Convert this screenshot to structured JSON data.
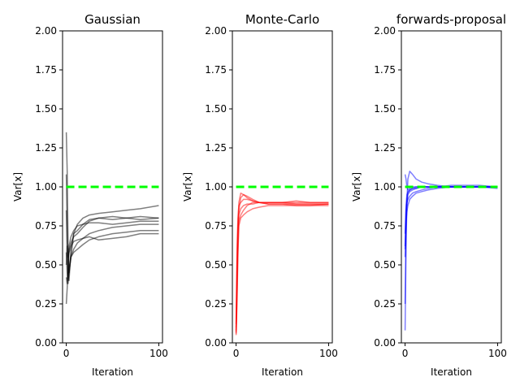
{
  "chart_data": [
    {
      "type": "line",
      "title": "Gaussian",
      "xlabel": "Iteration",
      "ylabel": "Var[x]",
      "xlim": [
        -4,
        104
      ],
      "ylim": [
        0,
        2
      ],
      "xticks": [
        "0",
        "100"
      ],
      "yticks": [
        "0.00",
        "0.25",
        "0.50",
        "0.75",
        "1.00",
        "1.25",
        "1.50",
        "1.75",
        "2.00"
      ],
      "reference_line": {
        "y": 1.0,
        "color": "#00ff00",
        "style": "dashed"
      },
      "series_color": "#000000",
      "series_opacity": 0.5,
      "series": [
        {
          "x": [
            0,
            1,
            2,
            3,
            5,
            8,
            12,
            18,
            25,
            35,
            50,
            65,
            80,
            100
          ],
          "values": [
            1.35,
            1.1,
            0.6,
            0.45,
            0.55,
            0.7,
            0.72,
            0.76,
            0.79,
            0.8,
            0.79,
            0.8,
            0.81,
            0.8
          ]
        },
        {
          "x": [
            0,
            1,
            2,
            3,
            5,
            8,
            12,
            18,
            25,
            35,
            50,
            65,
            80,
            100
          ],
          "values": [
            1.08,
            0.75,
            0.52,
            0.4,
            0.6,
            0.7,
            0.76,
            0.8,
            0.82,
            0.83,
            0.84,
            0.85,
            0.86,
            0.88
          ]
        },
        {
          "x": [
            0,
            1,
            2,
            3,
            5,
            8,
            12,
            18,
            25,
            35,
            50,
            65,
            80,
            100
          ],
          "values": [
            0.25,
            0.35,
            0.5,
            0.62,
            0.68,
            0.72,
            0.75,
            0.76,
            0.77,
            0.77,
            0.76,
            0.77,
            0.78,
            0.78
          ]
        },
        {
          "x": [
            0,
            1,
            2,
            3,
            5,
            8,
            12,
            18,
            25,
            35,
            50,
            65,
            80,
            100
          ],
          "values": [
            0.85,
            0.55,
            0.4,
            0.45,
            0.55,
            0.6,
            0.64,
            0.67,
            0.7,
            0.72,
            0.74,
            0.75,
            0.76,
            0.76
          ]
        },
        {
          "x": [
            0,
            1,
            2,
            3,
            5,
            8,
            12,
            18,
            25,
            35,
            50,
            65,
            80,
            100
          ],
          "values": [
            0.58,
            0.45,
            0.38,
            0.48,
            0.55,
            0.58,
            0.6,
            0.63,
            0.66,
            0.68,
            0.7,
            0.71,
            0.72,
            0.72
          ]
        },
        {
          "x": [
            0,
            1,
            2,
            3,
            5,
            8,
            12,
            18,
            25,
            35,
            50,
            65,
            80,
            100
          ],
          "values": [
            0.5,
            0.62,
            0.55,
            0.58,
            0.62,
            0.65,
            0.66,
            0.67,
            0.68,
            0.66,
            0.67,
            0.68,
            0.7,
            0.7
          ]
        },
        {
          "x": [
            0,
            1,
            2,
            3,
            5,
            8,
            12,
            18,
            25,
            35,
            50,
            65,
            80,
            100
          ],
          "values": [
            0.42,
            0.38,
            0.45,
            0.6,
            0.64,
            0.68,
            0.7,
            0.74,
            0.78,
            0.8,
            0.81,
            0.8,
            0.79,
            0.8
          ]
        }
      ]
    },
    {
      "type": "line",
      "title": "Monte-Carlo",
      "xlabel": "Iteration",
      "ylabel": "Var[x]",
      "xlim": [
        -4,
        104
      ],
      "ylim": [
        0,
        2
      ],
      "xticks": [
        "0",
        "100"
      ],
      "yticks": [
        "0.00",
        "0.25",
        "0.50",
        "0.75",
        "1.00",
        "1.25",
        "1.50",
        "1.75",
        "2.00"
      ],
      "reference_line": {
        "y": 1.0,
        "color": "#00ff00",
        "style": "dashed"
      },
      "series_color": "#ff0000",
      "series_opacity": 0.5,
      "series": [
        {
          "x": [
            0,
            1,
            2,
            3,
            5,
            8,
            12,
            18,
            25,
            35,
            50,
            65,
            80,
            100
          ],
          "values": [
            0.06,
            0.4,
            0.7,
            0.85,
            0.93,
            0.95,
            0.94,
            0.92,
            0.9,
            0.89,
            0.89,
            0.89,
            0.89,
            0.89
          ]
        },
        {
          "x": [
            0,
            1,
            2,
            3,
            5,
            8,
            12,
            18,
            25,
            35,
            50,
            65,
            80,
            100
          ],
          "values": [
            0.1,
            0.5,
            0.75,
            0.9,
            0.96,
            0.95,
            0.93,
            0.91,
            0.9,
            0.9,
            0.9,
            0.9,
            0.9,
            0.9
          ]
        },
        {
          "x": [
            0,
            1,
            2,
            3,
            5,
            8,
            12,
            18,
            25,
            35,
            50,
            65,
            80,
            100
          ],
          "values": [
            0.08,
            0.3,
            0.6,
            0.78,
            0.82,
            0.85,
            0.88,
            0.9,
            0.9,
            0.89,
            0.89,
            0.88,
            0.88,
            0.89
          ]
        },
        {
          "x": [
            0,
            1,
            2,
            3,
            5,
            8,
            12,
            18,
            25,
            35,
            50,
            65,
            80,
            100
          ],
          "values": [
            0.05,
            0.25,
            0.55,
            0.75,
            0.8,
            0.82,
            0.84,
            0.86,
            0.87,
            0.88,
            0.88,
            0.88,
            0.88,
            0.88
          ]
        },
        {
          "x": [
            0,
            1,
            2,
            3,
            5,
            8,
            12,
            18,
            25,
            35,
            50,
            65,
            80,
            100
          ],
          "values": [
            0.12,
            0.6,
            0.8,
            0.88,
            0.9,
            0.92,
            0.92,
            0.91,
            0.9,
            0.9,
            0.9,
            0.91,
            0.9,
            0.9
          ]
        },
        {
          "x": [
            0,
            1,
            2,
            3,
            5,
            8,
            12,
            18,
            25,
            35,
            50,
            65,
            80,
            100
          ],
          "values": [
            0.07,
            0.45,
            0.72,
            0.82,
            0.86,
            0.88,
            0.89,
            0.89,
            0.9,
            0.9,
            0.9,
            0.89,
            0.89,
            0.89
          ]
        }
      ]
    },
    {
      "type": "line",
      "title": "forwards-proposal",
      "xlabel": "Iteration",
      "ylabel": "Var[x]",
      "xlim": [
        -4,
        104
      ],
      "ylim": [
        0,
        2
      ],
      "xticks": [
        "0",
        "100"
      ],
      "yticks": [
        "0.00",
        "0.25",
        "0.50",
        "0.75",
        "1.00",
        "1.25",
        "1.50",
        "1.75",
        "2.00"
      ],
      "reference_line": {
        "y": 1.0,
        "color": "#00ff00",
        "style": "dashed"
      },
      "series_color": "#0000ff",
      "series_opacity": 0.5,
      "series": [
        {
          "x": [
            0,
            1,
            2,
            3,
            5,
            8,
            12,
            18,
            25,
            35,
            50,
            65,
            80,
            100
          ],
          "values": [
            0.08,
            0.6,
            0.9,
            1.05,
            1.1,
            1.08,
            1.05,
            1.03,
            1.02,
            1.01,
            1.0,
            1.0,
            1.0,
            1.0
          ]
        },
        {
          "x": [
            0,
            1,
            2,
            3,
            5,
            8,
            12,
            18,
            25,
            35,
            50,
            65,
            80,
            100
          ],
          "values": [
            0.25,
            0.7,
            0.88,
            0.95,
            0.97,
            0.98,
            0.99,
            1.0,
            1.0,
            1.0,
            1.0,
            1.0,
            1.0,
            0.99
          ]
        },
        {
          "x": [
            0,
            1,
            2,
            3,
            5,
            8,
            12,
            18,
            25,
            35,
            50,
            65,
            80,
            100
          ],
          "values": [
            0.55,
            0.8,
            0.92,
            0.96,
            0.98,
            0.99,
            1.0,
            1.0,
            1.0,
            1.0,
            1.0,
            1.0,
            1.0,
            1.0
          ]
        },
        {
          "x": [
            0,
            1,
            2,
            3,
            5,
            8,
            12,
            18,
            25,
            35,
            50,
            65,
            80,
            100
          ],
          "values": [
            1.08,
            1.05,
            1.0,
            0.98,
            0.99,
            1.0,
            1.0,
            1.0,
            1.0,
            1.0,
            1.0,
            1.0,
            1.0,
            1.0
          ]
        },
        {
          "x": [
            0,
            1,
            2,
            3,
            5,
            8,
            12,
            18,
            25,
            35,
            50,
            65,
            80,
            100
          ],
          "values": [
            0.62,
            0.85,
            0.9,
            0.92,
            0.94,
            0.96,
            0.97,
            0.98,
            0.99,
            1.0,
            1.0,
            1.0,
            1.0,
            1.0
          ]
        },
        {
          "x": [
            0,
            1,
            2,
            3,
            5,
            8,
            12,
            18,
            25,
            35,
            50,
            65,
            80,
            100
          ],
          "values": [
            0.6,
            0.78,
            0.84,
            0.88,
            0.92,
            0.94,
            0.96,
            0.97,
            0.98,
            0.99,
            1.0,
            1.0,
            1.0,
            1.0
          ]
        },
        {
          "x": [
            0,
            1,
            2,
            3,
            5,
            8,
            12,
            18,
            25,
            35,
            50,
            65,
            80,
            100
          ],
          "values": [
            0.7,
            0.88,
            0.95,
            0.97,
            0.98,
            0.99,
            0.99,
            1.0,
            1.0,
            1.0,
            1.01,
            1.01,
            1.01,
            1.0
          ]
        }
      ]
    }
  ]
}
